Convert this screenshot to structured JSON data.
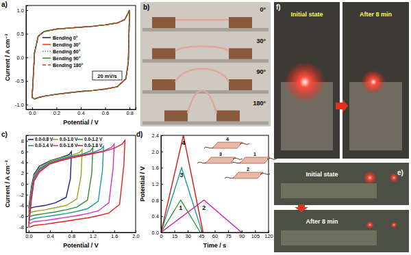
{
  "chart_data": [
    {
      "type": "line",
      "panel_label": "a)",
      "x_label": "Potential / V",
      "y_label": "Current / A cm⁻³",
      "annotations": [
        "20 mV/s"
      ],
      "xlim": [
        -0.05,
        0.85
      ],
      "xticks": [
        {
          "value": 0,
          "label": "0.0"
        },
        0.2,
        0.4,
        0.6,
        0.8
      ],
      "ylim": [
        -1.1,
        1.1
      ],
      "yticks": [
        {
          "value": -1,
          "label": "-1.0"
        },
        -0.5,
        {
          "value": 0,
          "label": "0.0"
        },
        0.5,
        {
          "value": 1,
          "label": "1.0"
        }
      ],
      "legend": "center",
      "grid": false,
      "series": [
        {
          "name": "Bending 0°",
          "color": "#1a237e",
          "line_style": "solid",
          "x": [
            0,
            0.02,
            0.05,
            0.1,
            0.2,
            0.3,
            0.4,
            0.5,
            0.6,
            0.7,
            0.76,
            0.8,
            0.79,
            0.77,
            0.7,
            0.6,
            0.5,
            0.4,
            0.3,
            0.2,
            0.1,
            0.05,
            0.02,
            0
          ],
          "values": [
            -0.85,
            0.1,
            0.45,
            0.55,
            0.6,
            0.62,
            0.64,
            0.66,
            0.69,
            0.73,
            0.8,
            1.0,
            -0.1,
            -0.45,
            -0.62,
            -0.67,
            -0.7,
            -0.72,
            -0.75,
            -0.78,
            -0.82,
            -0.85,
            -0.88,
            -0.85
          ]
        },
        {
          "name": "Bending 30°",
          "color": "#ff3b1f",
          "line_style": "solid",
          "x": [
            0,
            0.02,
            0.05,
            0.1,
            0.2,
            0.3,
            0.4,
            0.5,
            0.6,
            0.7,
            0.76,
            0.8,
            0.79,
            0.77,
            0.7,
            0.6,
            0.5,
            0.4,
            0.3,
            0.2,
            0.1,
            0.05,
            0.02,
            0
          ],
          "values": [
            -0.85,
            0.1,
            0.45,
            0.55,
            0.6,
            0.62,
            0.64,
            0.66,
            0.69,
            0.73,
            0.8,
            1.0,
            -0.1,
            -0.45,
            -0.62,
            -0.67,
            -0.7,
            -0.72,
            -0.75,
            -0.78,
            -0.82,
            -0.85,
            -0.88,
            -0.85
          ]
        },
        {
          "name": "Bending 60°",
          "color": "#1e8a8a",
          "line_style": "dotted",
          "x": [
            0,
            0.02,
            0.05,
            0.1,
            0.2,
            0.3,
            0.4,
            0.5,
            0.6,
            0.7,
            0.76,
            0.8,
            0.79,
            0.77,
            0.7,
            0.6,
            0.5,
            0.4,
            0.3,
            0.2,
            0.1,
            0.05,
            0.02,
            0
          ],
          "values": [
            -0.85,
            0.1,
            0.45,
            0.55,
            0.6,
            0.62,
            0.64,
            0.66,
            0.69,
            0.73,
            0.8,
            1.0,
            -0.1,
            -0.45,
            -0.62,
            -0.67,
            -0.7,
            -0.72,
            -0.75,
            -0.78,
            -0.82,
            -0.85,
            -0.88,
            -0.85
          ]
        },
        {
          "name": "Bending 90°",
          "color": "#2e9e2e",
          "line_style": "solid",
          "x": [
            0,
            0.02,
            0.05,
            0.1,
            0.2,
            0.3,
            0.4,
            0.5,
            0.6,
            0.7,
            0.76,
            0.8,
            0.79,
            0.77,
            0.7,
            0.6,
            0.5,
            0.4,
            0.3,
            0.2,
            0.1,
            0.05,
            0.02,
            0
          ],
          "values": [
            -0.85,
            0.1,
            0.45,
            0.55,
            0.6,
            0.62,
            0.64,
            0.66,
            0.69,
            0.73,
            0.8,
            1.0,
            -0.1,
            -0.45,
            -0.62,
            -0.67,
            -0.7,
            -0.72,
            -0.75,
            -0.78,
            -0.82,
            -0.85,
            -0.88,
            -0.85
          ]
        },
        {
          "name": "Bending 180°",
          "color": "#e02828",
          "line_style": "dashed",
          "x": [
            0,
            0.02,
            0.05,
            0.1,
            0.2,
            0.3,
            0.4,
            0.5,
            0.6,
            0.7,
            0.76,
            0.8,
            0.79,
            0.77,
            0.7,
            0.6,
            0.5,
            0.4,
            0.3,
            0.2,
            0.1,
            0.05,
            0.02,
            0
          ],
          "values": [
            -0.85,
            0.1,
            0.45,
            0.55,
            0.6,
            0.62,
            0.64,
            0.66,
            0.69,
            0.73,
            0.8,
            1.0,
            -0.1,
            -0.45,
            -0.62,
            -0.67,
            -0.7,
            -0.72,
            -0.75,
            -0.78,
            -0.82,
            -0.85,
            -0.88,
            -0.85
          ]
        }
      ]
    },
    {
      "type": "line",
      "panel_label": "c)",
      "x_label": "Potential / V",
      "y_label": "Current / A cm⁻³",
      "xlim": [
        -0.05,
        2.0
      ],
      "xticks": [
        {
          "value": 0,
          "label": "0.0"
        },
        0.4,
        0.8,
        1.2,
        1.6,
        {
          "value": 2,
          "label": "2.0"
        }
      ],
      "ylim": [
        -9,
        9
      ],
      "yticks": [
        -8,
        -6,
        -4,
        -2,
        0,
        2,
        4,
        6,
        8
      ],
      "legend": "upper left",
      "grid": false,
      "series": [
        {
          "name": "0.0-0.8 V",
          "color": "#1a1a8c",
          "line_style": "solid",
          "x": [
            0,
            0.05,
            0.1,
            0.2,
            0.4,
            0.6,
            0.75,
            0.8,
            0.78,
            0.7,
            0.5,
            0.3,
            0.1,
            0.03,
            0
          ],
          "values": [
            -4.5,
            -0.5,
            1.8,
            3.3,
            4.3,
            4.9,
            5.4,
            6.0,
            1.0,
            -2.5,
            -3.5,
            -4.0,
            -4.3,
            -4.5,
            -4.5
          ]
        },
        {
          "name": "0.0-1.0 V",
          "color": "#a0a020",
          "line_style": "solid",
          "x": [
            0,
            0.05,
            0.1,
            0.2,
            0.4,
            0.6,
            0.8,
            0.95,
            1.0,
            0.98,
            0.9,
            0.7,
            0.5,
            0.3,
            0.1,
            0.03,
            0
          ],
          "values": [
            -5.3,
            -1.0,
            1.5,
            3.0,
            4.2,
            4.8,
            5.3,
            5.8,
            6.4,
            1.5,
            -2.8,
            -4.0,
            -4.4,
            -4.8,
            -5.1,
            -5.3,
            -5.3
          ]
        },
        {
          "name": "0.0-1.2 V",
          "color": "#2e8b2e",
          "line_style": "solid",
          "x": [
            0,
            0.05,
            0.1,
            0.2,
            0.4,
            0.6,
            0.8,
            1.0,
            1.15,
            1.2,
            1.18,
            1.1,
            0.9,
            0.7,
            0.5,
            0.3,
            0.1,
            0.03,
            0
          ],
          "values": [
            -6.0,
            -1.5,
            1.2,
            2.8,
            4.0,
            4.6,
            5.1,
            5.5,
            6.1,
            6.7,
            2.0,
            -3.0,
            -4.3,
            -4.8,
            -5.2,
            -5.5,
            -5.8,
            -6.0,
            -6.0
          ]
        },
        {
          "name": "0.0-1.4 V",
          "color": "#1a9a9a",
          "line_style": "solid",
          "x": [
            0,
            0.05,
            0.1,
            0.2,
            0.4,
            0.6,
            0.8,
            1.0,
            1.2,
            1.35,
            1.4,
            1.38,
            1.3,
            1.1,
            0.9,
            0.7,
            0.5,
            0.3,
            0.1,
            0.03,
            0
          ],
          "values": [
            -6.7,
            -2.0,
            1.0,
            2.6,
            3.9,
            4.5,
            5.0,
            5.4,
            5.8,
            6.4,
            7.0,
            2.5,
            -3.2,
            -4.6,
            -5.1,
            -5.5,
            -5.8,
            -6.1,
            -6.4,
            -6.7,
            -6.7
          ]
        },
        {
          "name": "0.0-1.6 V",
          "color": "#d030d0",
          "line_style": "solid",
          "x": [
            0,
            0.05,
            0.1,
            0.2,
            0.4,
            0.6,
            0.8,
            1.0,
            1.2,
            1.4,
            1.55,
            1.6,
            1.58,
            1.5,
            1.3,
            1.1,
            0.9,
            0.7,
            0.5,
            0.3,
            0.1,
            0.03,
            0
          ],
          "values": [
            -7.3,
            -2.5,
            0.8,
            2.4,
            3.8,
            4.4,
            4.9,
            5.3,
            5.7,
            6.1,
            6.8,
            7.4,
            3.0,
            -3.5,
            -5.0,
            -5.5,
            -5.9,
            -6.2,
            -6.5,
            -6.8,
            -7.0,
            -7.3,
            -7.3
          ]
        },
        {
          "name": "0.0-1.8 V",
          "color": "#e02020",
          "line_style": "solid",
          "x": [
            0,
            0.05,
            0.1,
            0.2,
            0.4,
            0.6,
            0.8,
            1.0,
            1.2,
            1.4,
            1.6,
            1.75,
            1.8,
            1.78,
            1.7,
            1.5,
            1.3,
            1.1,
            0.9,
            0.7,
            0.5,
            0.3,
            0.1,
            0.03,
            0
          ],
          "values": [
            -8.0,
            -3.0,
            0.5,
            2.2,
            3.7,
            4.3,
            4.8,
            5.2,
            5.6,
            6.0,
            6.6,
            7.4,
            8.1,
            3.5,
            -3.8,
            -5.4,
            -5.9,
            -6.3,
            -6.6,
            -6.9,
            -7.2,
            -7.5,
            -7.7,
            -8.0,
            -8.0
          ]
        }
      ]
    },
    {
      "type": "line",
      "panel_label": "d)",
      "x_label": "Time / s",
      "y_label": "Potential / V",
      "inset_labels": [
        "4",
        "3",
        "1",
        "2"
      ],
      "xlim": [
        0,
        120
      ],
      "xticks": [
        0,
        15,
        30,
        45,
        60,
        75,
        90,
        105,
        120
      ],
      "ylim": [
        0,
        2.4
      ],
      "yticks": [
        {
          "value": 0,
          "label": "0.0"
        },
        0.4,
        0.8,
        1.2,
        1.6,
        {
          "value": 2,
          "label": "2.0"
        },
        2.4
      ],
      "legend": "inline",
      "grid": false,
      "series": [
        {
          "name": "1",
          "color": "#2e9e2e",
          "line_style": "solid",
          "x": [
            0,
            22,
            44
          ],
          "values": [
            0,
            0.8,
            0
          ]
        },
        {
          "name": "2",
          "color": "#d020c0",
          "line_style": "solid",
          "x": [
            0,
            48,
            90
          ],
          "values": [
            0,
            0.8,
            0
          ]
        },
        {
          "name": "3",
          "color": "#1a9a9a",
          "line_style": "solid",
          "x": [
            0,
            23,
            46
          ],
          "values": [
            0,
            1.6,
            0
          ]
        },
        {
          "name": "4",
          "color": "#e01010",
          "line_style": "solid",
          "x": [
            0,
            25,
            47
          ],
          "values": [
            0,
            2.4,
            0
          ]
        }
      ]
    }
  ],
  "photos": [
    {
      "panel_label": "b)",
      "labels": [
        "0°",
        "30°",
        "90°",
        "180°"
      ]
    },
    {
      "panel_label": "f)",
      "labels": [
        "Initial state",
        "After 8 min"
      ]
    },
    {
      "panel_label": "e)",
      "labels": [
        "Initial state",
        "After 8 min"
      ]
    }
  ]
}
